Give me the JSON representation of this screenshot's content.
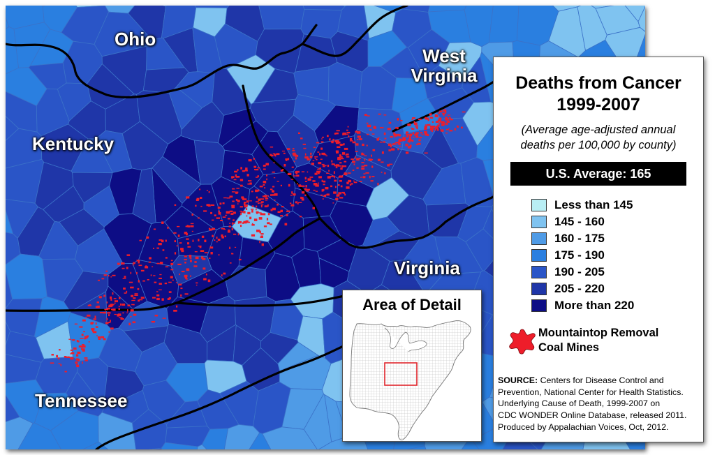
{
  "map": {
    "state_labels": {
      "ohio": "Ohio",
      "west_virginia_line1": "West",
      "west_virginia_line2": "Virginia",
      "kentucky": "Kentucky",
      "virginia": "Virginia",
      "tennessee": "Tennessee"
    },
    "layers": [
      "county-cancer-death-rates",
      "state-borders",
      "mountaintop-removal-coal-mines"
    ]
  },
  "legend": {
    "title_line1": "Deaths from Cancer",
    "title_line2": "1999-2007",
    "subtitle_line1": "(Average age-adjusted annual",
    "subtitle_line2": "deaths per 100,000 by county)",
    "us_average": "U.S. Average: 165",
    "classes": [
      {
        "label": "Less than 145",
        "color": "#b9eef4"
      },
      {
        "label": "145 - 160",
        "color": "#7fc3f0"
      },
      {
        "label": "160 - 175",
        "color": "#4f9be6"
      },
      {
        "label": "175 - 190",
        "color": "#2a7fe0"
      },
      {
        "label": "190 - 205",
        "color": "#2a55c7"
      },
      {
        "label": "205 - 220",
        "color": "#1f36a8"
      },
      {
        "label": "More than 220",
        "color": "#0d0d85"
      }
    ],
    "mines_label_line1": "Mountaintop Removal",
    "mines_label_line2": "Coal Mines",
    "mines_color": "#ee1d2a",
    "mines_icon": "red-splat-icon",
    "source_heading": "SOURCE:",
    "source_text_1": "Centers for Disease Control and",
    "source_text_2": "Prevention, National Center for Health Statistics.",
    "source_text_3": "Underlying Cause of Death, 1999-2007 on",
    "source_text_4": "CDC WONDER Online Database, released 2011.",
    "produced_by": "Produced by Appalachian Voices, Oct, 2012."
  },
  "inset": {
    "title": "Area of Detail",
    "highlight_color": "#e0242b"
  }
}
